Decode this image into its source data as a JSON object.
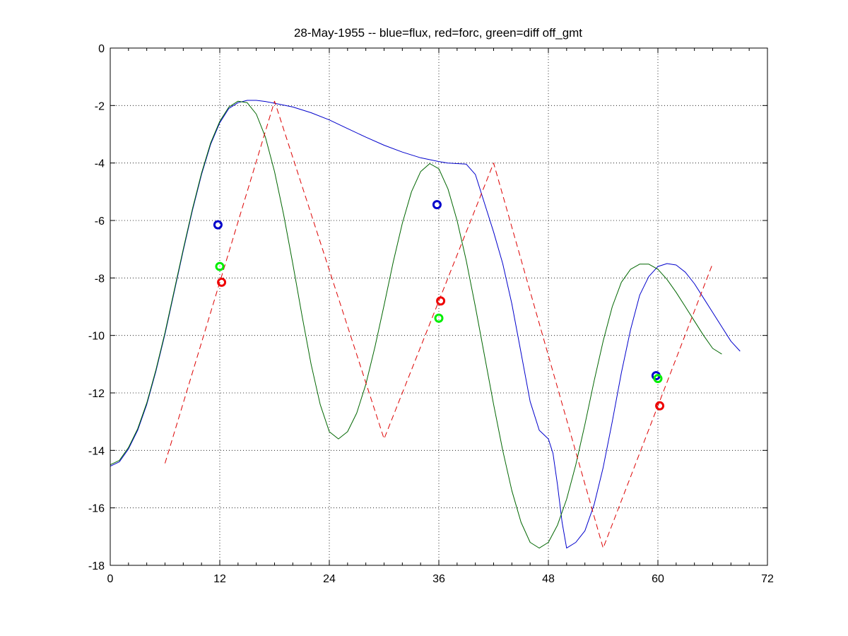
{
  "chart_data": {
    "type": "line",
    "title": "28-May-1955 -- blue=flux, red=forc, green=diff off_gmt",
    "xlabel": "",
    "ylabel": "",
    "xlim": [
      0,
      72
    ],
    "ylim": [
      -18,
      0
    ],
    "xticks": [
      0,
      12,
      24,
      36,
      48,
      60,
      72
    ],
    "yticks": [
      0,
      -2,
      -4,
      -6,
      -8,
      -10,
      -12,
      -14,
      -16,
      -18
    ],
    "grid": true,
    "series": [
      {
        "style": "solid",
        "color": "#0000cc",
        "points": [
          [
            0,
            -14.55
          ],
          [
            1,
            -14.4
          ],
          [
            2,
            -13.95
          ],
          [
            3,
            -13.3
          ],
          [
            4,
            -12.4
          ],
          [
            5,
            -11.25
          ],
          [
            6,
            -9.95
          ],
          [
            7,
            -8.5
          ],
          [
            8,
            -7.05
          ],
          [
            9,
            -5.65
          ],
          [
            10,
            -4.4
          ],
          [
            11,
            -3.35
          ],
          [
            12,
            -2.6
          ],
          [
            13,
            -2.1
          ],
          [
            14,
            -1.9
          ],
          [
            15,
            -1.82
          ],
          [
            16,
            -1.82
          ],
          [
            17,
            -1.86
          ],
          [
            18,
            -1.92
          ],
          [
            20,
            -2.05
          ],
          [
            22,
            -2.25
          ],
          [
            24,
            -2.5
          ],
          [
            26,
            -2.8
          ],
          [
            28,
            -3.1
          ],
          [
            30,
            -3.38
          ],
          [
            32,
            -3.62
          ],
          [
            34,
            -3.82
          ],
          [
            36,
            -3.95
          ],
          [
            37,
            -4.0
          ],
          [
            38,
            -4.02
          ],
          [
            39,
            -4.04
          ],
          [
            40,
            -4.4
          ],
          [
            41,
            -5.4
          ],
          [
            42,
            -6.4
          ],
          [
            43,
            -7.5
          ],
          [
            44,
            -8.9
          ],
          [
            45,
            -10.6
          ],
          [
            46,
            -12.3
          ],
          [
            47,
            -13.3
          ],
          [
            48,
            -13.6
          ],
          [
            48.5,
            -14.1
          ],
          [
            49,
            -15.2
          ],
          [
            49.5,
            -16.5
          ],
          [
            50,
            -17.4
          ],
          [
            51,
            -17.2
          ],
          [
            52,
            -16.8
          ],
          [
            53,
            -15.9
          ],
          [
            54,
            -14.6
          ],
          [
            55,
            -13.0
          ],
          [
            56,
            -11.3
          ],
          [
            57,
            -9.8
          ],
          [
            58,
            -8.6
          ],
          [
            59,
            -7.95
          ],
          [
            60,
            -7.6
          ],
          [
            61,
            -7.5
          ],
          [
            62,
            -7.55
          ],
          [
            63,
            -7.8
          ],
          [
            64,
            -8.2
          ],
          [
            65,
            -8.7
          ],
          [
            66,
            -9.2
          ],
          [
            67,
            -9.7
          ],
          [
            68,
            -10.2
          ],
          [
            69,
            -10.55
          ]
        ]
      },
      {
        "style": "solid",
        "color": "#006600",
        "points": [
          [
            0,
            -14.5
          ],
          [
            1,
            -14.35
          ],
          [
            2,
            -13.9
          ],
          [
            3,
            -13.25
          ],
          [
            4,
            -12.35
          ],
          [
            5,
            -11.2
          ],
          [
            6,
            -9.9
          ],
          [
            7,
            -8.45
          ],
          [
            8,
            -7.0
          ],
          [
            9,
            -5.6
          ],
          [
            10,
            -4.35
          ],
          [
            11,
            -3.3
          ],
          [
            12,
            -2.55
          ],
          [
            13,
            -2.05
          ],
          [
            14,
            -1.85
          ],
          [
            15,
            -1.9
          ],
          [
            16,
            -2.3
          ],
          [
            17,
            -3.1
          ],
          [
            18,
            -4.3
          ],
          [
            19,
            -5.8
          ],
          [
            20,
            -7.5
          ],
          [
            21,
            -9.3
          ],
          [
            22,
            -11.0
          ],
          [
            23,
            -12.4
          ],
          [
            24,
            -13.35
          ],
          [
            25,
            -13.6
          ],
          [
            26,
            -13.35
          ],
          [
            27,
            -12.7
          ],
          [
            28,
            -11.7
          ],
          [
            29,
            -10.4
          ],
          [
            30,
            -8.95
          ],
          [
            31,
            -7.45
          ],
          [
            32,
            -6.1
          ],
          [
            33,
            -5.0
          ],
          [
            34,
            -4.3
          ],
          [
            35,
            -4.02
          ],
          [
            36,
            -4.2
          ],
          [
            37,
            -4.9
          ],
          [
            38,
            -6.0
          ],
          [
            39,
            -7.4
          ],
          [
            40,
            -9.0
          ],
          [
            41,
            -10.7
          ],
          [
            42,
            -12.4
          ],
          [
            43,
            -14.0
          ],
          [
            44,
            -15.4
          ],
          [
            45,
            -16.5
          ],
          [
            46,
            -17.2
          ],
          [
            47,
            -17.4
          ],
          [
            48,
            -17.2
          ],
          [
            49,
            -16.6
          ],
          [
            50,
            -15.7
          ],
          [
            51,
            -14.5
          ],
          [
            52,
            -13.1
          ],
          [
            53,
            -11.6
          ],
          [
            54,
            -10.2
          ],
          [
            55,
            -9.0
          ],
          [
            56,
            -8.15
          ],
          [
            57,
            -7.7
          ],
          [
            58,
            -7.52
          ],
          [
            59,
            -7.52
          ],
          [
            60,
            -7.7
          ],
          [
            61,
            -8.05
          ],
          [
            62,
            -8.5
          ],
          [
            63,
            -9.0
          ],
          [
            64,
            -9.5
          ],
          [
            65,
            -10.0
          ],
          [
            66,
            -10.45
          ],
          [
            67,
            -10.65
          ]
        ]
      },
      {
        "style": "dashed",
        "color": "#dd0000",
        "points": [
          [
            6,
            -14.45
          ],
          [
            18,
            -1.85
          ],
          [
            30,
            -13.6
          ],
          [
            42,
            -4.0
          ],
          [
            54,
            -17.4
          ],
          [
            66,
            -7.5
          ]
        ]
      }
    ],
    "markers": [
      {
        "color": "#0000cc",
        "x": 11.8,
        "y": -6.15
      },
      {
        "color": "#00ee00",
        "x": 12.0,
        "y": -7.6
      },
      {
        "color": "#ee0000",
        "x": 12.2,
        "y": -8.15
      },
      {
        "color": "#0000cc",
        "x": 35.8,
        "y": -5.45
      },
      {
        "color": "#00ee00",
        "x": 36.0,
        "y": -9.4
      },
      {
        "color": "#ee0000",
        "x": 36.2,
        "y": -8.8
      },
      {
        "color": "#0000cc",
        "x": 59.8,
        "y": -11.4
      },
      {
        "color": "#00ee00",
        "x": 60.0,
        "y": -11.5
      },
      {
        "color": "#ee0000",
        "x": 60.2,
        "y": -12.45
      }
    ]
  }
}
